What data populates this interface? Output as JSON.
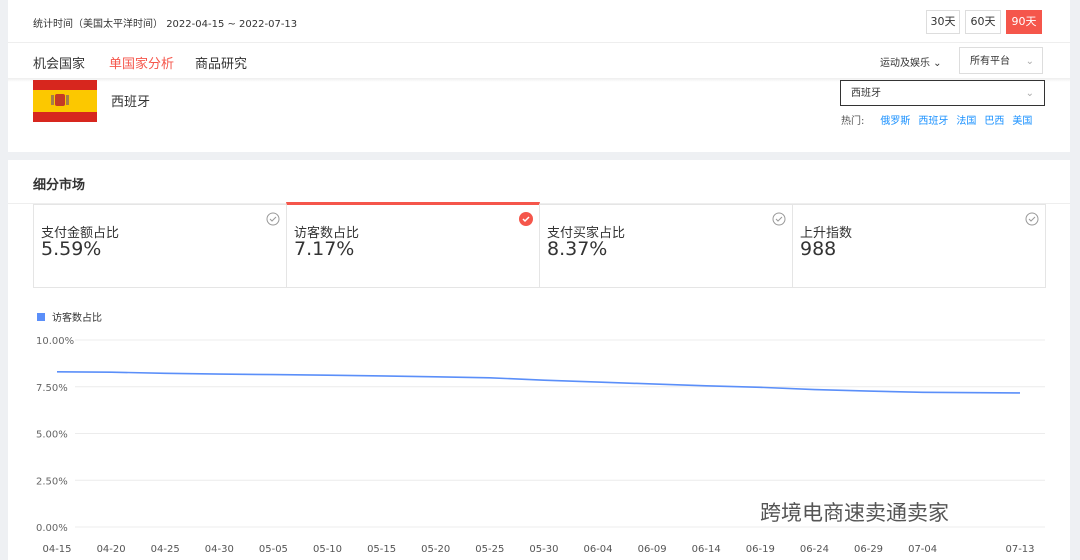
{
  "header": {
    "period_label": "统计时间（美国太平洋时间）",
    "period": "2022-04-15 ~ 2022-07-13",
    "ranges": [
      "30天",
      "60天",
      "90天"
    ]
  },
  "tabs": [
    "机会国家",
    "单国家分析",
    "商品研究"
  ],
  "filters": [
    "运动及娱乐",
    "所有平台"
  ],
  "country": {
    "name": "西班牙",
    "select": "西班牙",
    "hot_label": "热门:",
    "hot": [
      "俄罗斯",
      "西班牙",
      "法国",
      "巴西",
      "美国"
    ]
  },
  "section_title": "细分市场",
  "metrics": [
    {
      "label": "支付金额占比",
      "value": "5.59%"
    },
    {
      "label": "访客数占比",
      "value": "7.17%"
    },
    {
      "label": "支付买家占比",
      "value": "8.37%"
    },
    {
      "label": "上升指数",
      "value": "988"
    }
  ],
  "chart_data": {
    "type": "line",
    "x": [
      "04-15",
      "04-20",
      "04-25",
      "04-30",
      "05-05",
      "05-10",
      "05-15",
      "05-20",
      "05-25",
      "05-30",
      "06-04",
      "06-09",
      "06-14",
      "06-19",
      "06-24",
      "06-29",
      "07-04",
      "07-13"
    ],
    "series": [
      {
        "name": "访客数占比",
        "color": "#5b8ff9",
        "values": [
          8.3,
          8.28,
          8.22,
          8.18,
          8.15,
          8.12,
          8.08,
          8.03,
          7.98,
          7.85,
          7.75,
          7.65,
          7.55,
          7.47,
          7.35,
          7.27,
          7.2,
          7.17
        ]
      }
    ],
    "ylim": [
      0,
      10
    ],
    "yticks": [
      {
        "value": 0,
        "label": "0.00%"
      },
      {
        "value": 2.5,
        "label": "2.50%"
      },
      {
        "value": 5,
        "label": "5.00%"
      },
      {
        "value": 7.5,
        "label": "7.50%"
      },
      {
        "value": 10,
        "label": "10.00%"
      }
    ],
    "grid": true
  },
  "watermark": "跨境电商速卖通卖家"
}
